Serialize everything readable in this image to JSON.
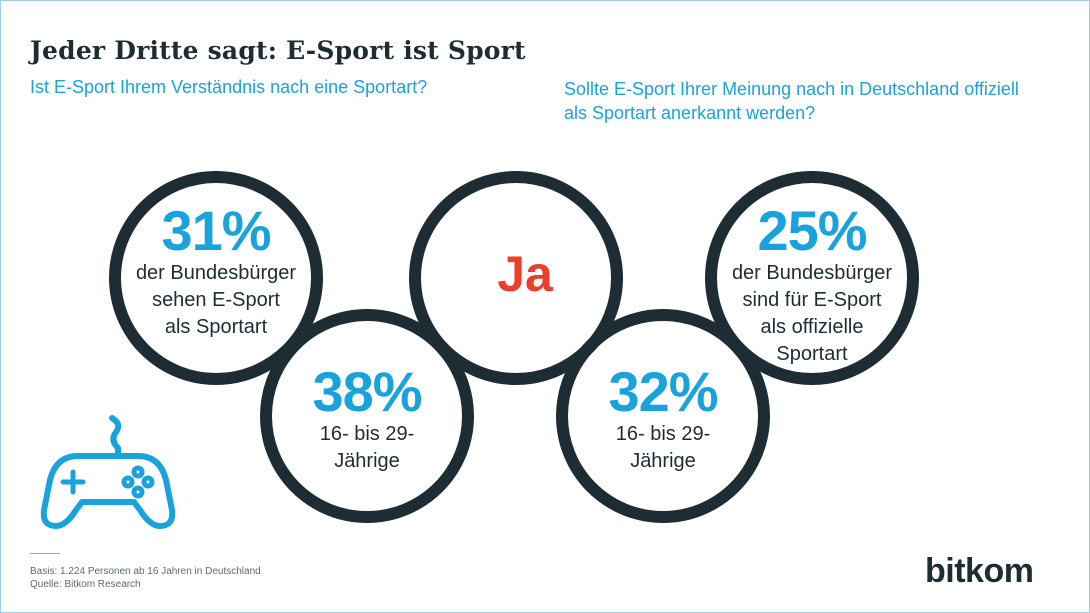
{
  "title": "Jeder Dritte sagt: E-Sport ist Sport",
  "question_left": "Ist E-Sport Ihrem Verständnis nach eine Sportart?",
  "question_right": "Sollte E-Sport Ihrer Meinung nach in Deutschland offiziell als Sportart anerkannt werden?",
  "center_label": "Ja",
  "chart_data": {
    "type": "infographic",
    "title": "Jeder Dritte sagt: E-Sport ist Sport",
    "answer": "Ja",
    "groups": [
      {
        "question": "Ist E-Sport Ihrem Verständnis nach eine Sportart?",
        "stats": [
          {
            "value": 31,
            "label": "31%",
            "text": "der Bundesbürger\nsehen E-Sport\nals Sportart"
          },
          {
            "value": 38,
            "label": "38%",
            "text": "16- bis 29-\nJährige"
          }
        ]
      },
      {
        "question": "Sollte E-Sport Ihrer Meinung nach in Deutschland offiziell als Sportart anerkannt werden?",
        "stats": [
          {
            "value": 25,
            "label": "25%",
            "text": "der Bundesbürger\nsind für E-Sport\nals offizielle\nSportart"
          },
          {
            "value": 32,
            "label": "32%",
            "text": "16- bis 29-\nJährige"
          }
        ]
      }
    ]
  },
  "footnote": {
    "basis": "Basis: 1.224 Personen ab 16 Jahren in Deutschland",
    "source": "Quelle: Bitkom Research"
  },
  "logo": {
    "part1": "bit",
    "part2": "kom"
  },
  "colors": {
    "accent": "#1aa2dd",
    "dark": "#1e2c33",
    "red": "#e8402d"
  },
  "icons": {
    "controller": "gamepad-icon"
  }
}
